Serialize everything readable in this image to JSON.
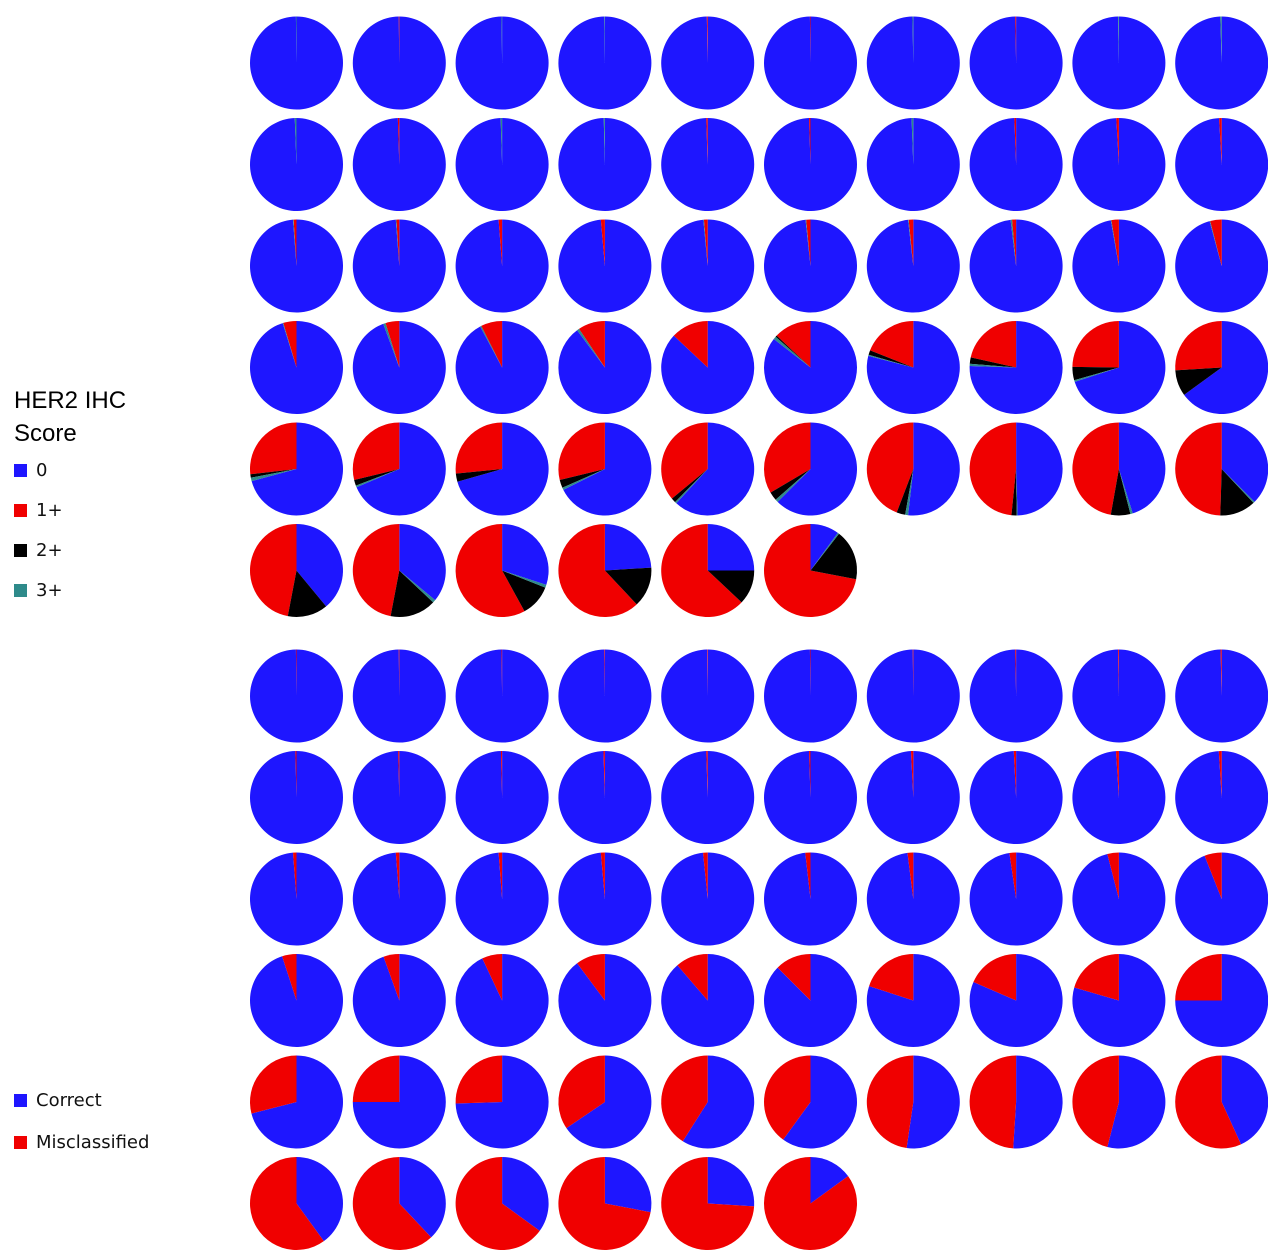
{
  "colors": {
    "zero": "#1e16ff",
    "one_plus": "#f00000",
    "two_plus": "#000000",
    "three_plus": "#2e8a8a",
    "correct": "#1e16ff",
    "misclassified": "#f00000"
  },
  "legend_top": {
    "title": "HER2 IHC\nScore",
    "items": [
      {
        "label": "0",
        "color_key": "zero"
      },
      {
        "label": "1+",
        "color_key": "one_plus"
      },
      {
        "label": "2+",
        "color_key": "two_plus"
      },
      {
        "label": "3+",
        "color_key": "three_plus"
      }
    ]
  },
  "legend_bottom": {
    "items": [
      {
        "label": "Correct",
        "color_key": "correct"
      },
      {
        "label": "Misclassified",
        "color_key": "misclassified"
      }
    ]
  },
  "chart_data": [
    {
      "type": "pie",
      "panel": "her2-ihc-score-distribution",
      "series_order": [
        "0",
        "1+",
        "2+",
        "3+"
      ],
      "pies": [
        [
          0.998,
          0.0,
          0.0,
          0.002
        ],
        [
          0.998,
          0.002,
          0.0,
          0.0
        ],
        [
          0.998,
          0.0,
          0.0,
          0.002
        ],
        [
          0.998,
          0.0,
          0.0,
          0.002
        ],
        [
          0.997,
          0.003,
          0.0,
          0.0
        ],
        [
          0.998,
          0.002,
          0.0,
          0.0
        ],
        [
          0.997,
          0.0,
          0.0,
          0.003
        ],
        [
          0.997,
          0.003,
          0.0,
          0.0
        ],
        [
          0.997,
          0.0,
          0.0,
          0.003
        ],
        [
          0.995,
          0.0,
          0.0,
          0.005
        ],
        [
          0.994,
          0.0,
          0.0,
          0.006
        ],
        [
          0.995,
          0.005,
          0.0,
          0.0
        ],
        [
          0.995,
          0.0,
          0.0,
          0.005
        ],
        [
          0.996,
          0.0,
          0.0,
          0.004
        ],
        [
          0.995,
          0.005,
          0.0,
          0.0
        ],
        [
          0.995,
          0.005,
          0.0,
          0.0
        ],
        [
          0.994,
          0.0,
          0.0,
          0.006
        ],
        [
          0.994,
          0.006,
          0.0,
          0.0
        ],
        [
          0.991,
          0.009,
          0.0,
          0.0
        ],
        [
          0.991,
          0.009,
          0.0,
          0.0
        ],
        [
          0.988,
          0.01,
          0.0,
          0.002
        ],
        [
          0.988,
          0.01,
          0.0,
          0.002
        ],
        [
          0.988,
          0.012,
          0.0,
          0.0
        ],
        [
          0.986,
          0.014,
          0.0,
          0.0
        ],
        [
          0.985,
          0.013,
          0.0,
          0.002
        ],
        [
          0.983,
          0.015,
          0.0,
          0.002
        ],
        [
          0.982,
          0.016,
          0.0,
          0.002
        ],
        [
          0.981,
          0.014,
          0.0,
          0.005
        ],
        [
          0.972,
          0.026,
          0.0,
          0.002
        ],
        [
          0.958,
          0.04,
          0.0,
          0.002
        ],
        [
          0.952,
          0.046,
          0.0,
          0.002
        ],
        [
          0.944,
          0.048,
          0.0,
          0.008
        ],
        [
          0.922,
          0.074,
          0.0,
          0.004
        ],
        [
          0.898,
          0.094,
          0.0,
          0.008
        ],
        [
          0.87,
          0.13,
          0.0,
          0.0
        ],
        [
          0.855,
          0.13,
          0.005,
          0.01
        ],
        [
          0.79,
          0.19,
          0.016,
          0.004
        ],
        [
          0.755,
          0.215,
          0.022,
          0.008
        ],
        [
          0.7,
          0.248,
          0.046,
          0.006
        ],
        [
          0.65,
          0.26,
          0.09,
          0.0
        ],
        [
          0.708,
          0.268,
          0.012,
          0.012
        ],
        [
          0.686,
          0.288,
          0.02,
          0.006
        ],
        [
          0.706,
          0.266,
          0.028,
          0.0
        ],
        [
          0.676,
          0.288,
          0.028,
          0.008
        ],
        [
          0.618,
          0.36,
          0.016,
          0.006
        ],
        [
          0.625,
          0.335,
          0.03,
          0.01
        ],
        [
          0.518,
          0.442,
          0.03,
          0.01
        ],
        [
          0.495,
          0.484,
          0.018,
          0.003
        ],
        [
          0.452,
          0.472,
          0.068,
          0.008
        ],
        [
          0.375,
          0.495,
          0.125,
          0.005
        ],
        [
          0.39,
          0.47,
          0.14,
          0.0
        ],
        [
          0.36,
          0.47,
          0.16,
          0.01
        ],
        [
          0.3,
          0.58,
          0.11,
          0.01
        ],
        [
          0.24,
          0.62,
          0.14,
          0.0
        ],
        [
          0.25,
          0.63,
          0.12,
          0.0
        ],
        [
          0.1,
          0.72,
          0.175,
          0.005
        ]
      ]
    },
    {
      "type": "pie",
      "panel": "classification-accuracy",
      "series_order": [
        "Correct",
        "Misclassified"
      ],
      "pies": [
        [
          0.998,
          0.002
        ],
        [
          0.998,
          0.002
        ],
        [
          0.998,
          0.002
        ],
        [
          0.998,
          0.002
        ],
        [
          0.998,
          0.002
        ],
        [
          0.998,
          0.002
        ],
        [
          0.998,
          0.002
        ],
        [
          0.997,
          0.003
        ],
        [
          0.997,
          0.003
        ],
        [
          0.996,
          0.004
        ],
        [
          0.996,
          0.004
        ],
        [
          0.996,
          0.004
        ],
        [
          0.996,
          0.004
        ],
        [
          0.995,
          0.005
        ],
        [
          0.995,
          0.005
        ],
        [
          0.995,
          0.005
        ],
        [
          0.992,
          0.008
        ],
        [
          0.992,
          0.008
        ],
        [
          0.99,
          0.01
        ],
        [
          0.99,
          0.01
        ],
        [
          0.988,
          0.012
        ],
        [
          0.988,
          0.012
        ],
        [
          0.988,
          0.012
        ],
        [
          0.986,
          0.014
        ],
        [
          0.984,
          0.016
        ],
        [
          0.982,
          0.018
        ],
        [
          0.98,
          0.02
        ],
        [
          0.977,
          0.023
        ],
        [
          0.96,
          0.04
        ],
        [
          0.94,
          0.06
        ],
        [
          0.95,
          0.05
        ],
        [
          0.945,
          0.055
        ],
        [
          0.93,
          0.07
        ],
        [
          0.898,
          0.102
        ],
        [
          0.887,
          0.113
        ],
        [
          0.875,
          0.125
        ],
        [
          0.8,
          0.2
        ],
        [
          0.815,
          0.185
        ],
        [
          0.795,
          0.205
        ],
        [
          0.75,
          0.25
        ],
        [
          0.71,
          0.29
        ],
        [
          0.75,
          0.25
        ],
        [
          0.745,
          0.255
        ],
        [
          0.655,
          0.345
        ],
        [
          0.59,
          0.41
        ],
        [
          0.6,
          0.4
        ],
        [
          0.523,
          0.477
        ],
        [
          0.51,
          0.49
        ],
        [
          0.54,
          0.46
        ],
        [
          0.432,
          0.568
        ],
        [
          0.4,
          0.6
        ],
        [
          0.38,
          0.62
        ],
        [
          0.35,
          0.65
        ],
        [
          0.28,
          0.72
        ],
        [
          0.26,
          0.74
        ],
        [
          0.15,
          0.85
        ]
      ]
    }
  ]
}
